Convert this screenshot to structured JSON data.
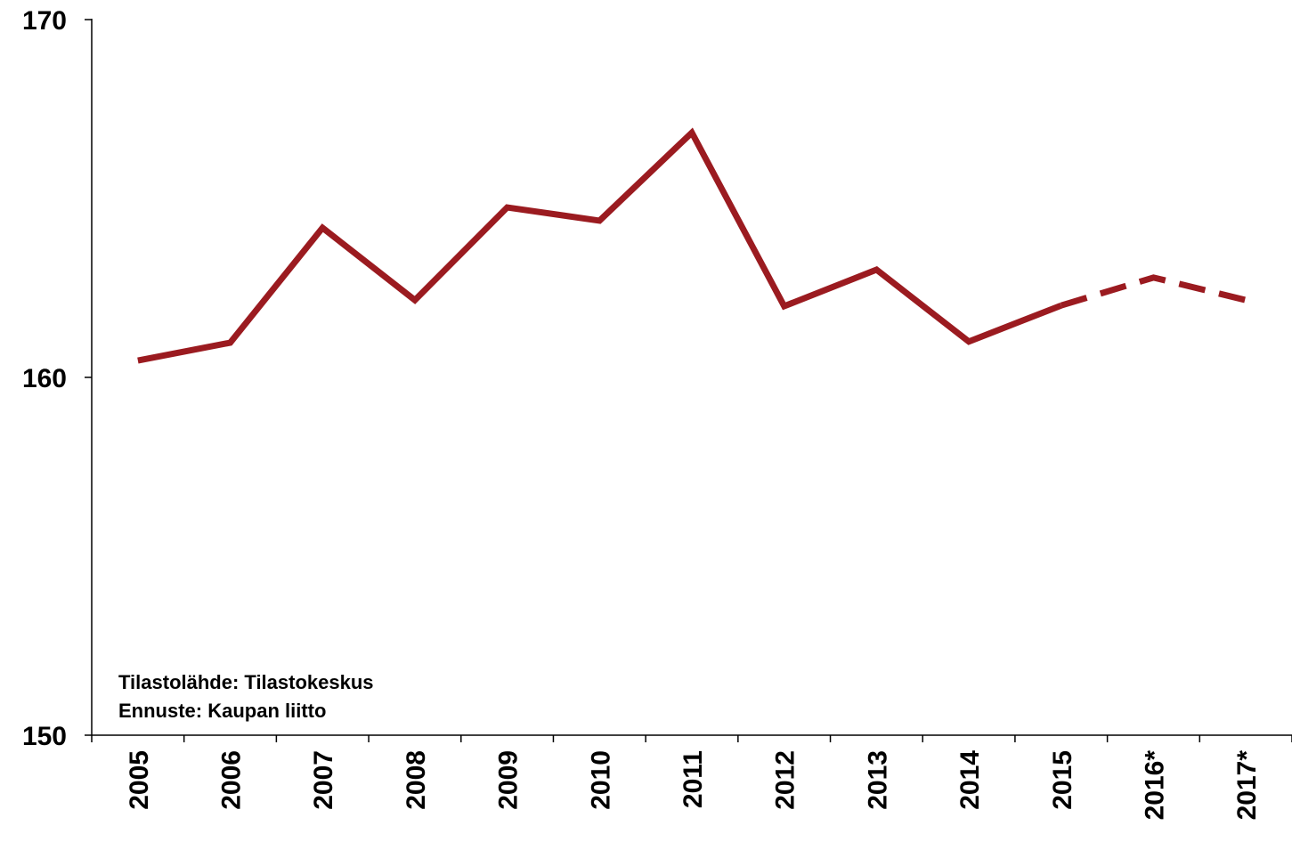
{
  "chart_data": {
    "type": "line",
    "categories": [
      "2005",
      "2006",
      "2007",
      "2008",
      "2009",
      "2010",
      "2011",
      "2012",
      "2013",
      "2014",
      "2015",
      "2016*",
      "2017*"
    ],
    "series": [
      {
        "color": "#9b1b20",
        "dash": "solid",
        "values": [
          160.47,
          160.97,
          164.18,
          162.16,
          164.75,
          164.38,
          166.84,
          161.99,
          163.01,
          161.0,
          162.01,
          null,
          null
        ]
      },
      {
        "color": "#9b1b20",
        "dash": "dashed",
        "values": [
          null,
          null,
          null,
          null,
          null,
          null,
          null,
          null,
          null,
          null,
          null,
          162.79,
          162.16
        ]
      }
    ],
    "ylim": [
      150,
      170
    ],
    "yticks": [
      150,
      160,
      170
    ],
    "grid": false,
    "annotations": [
      "Tilastolähde: Tilastokeskus",
      "Ennuste: Kaupan liitto"
    ]
  }
}
